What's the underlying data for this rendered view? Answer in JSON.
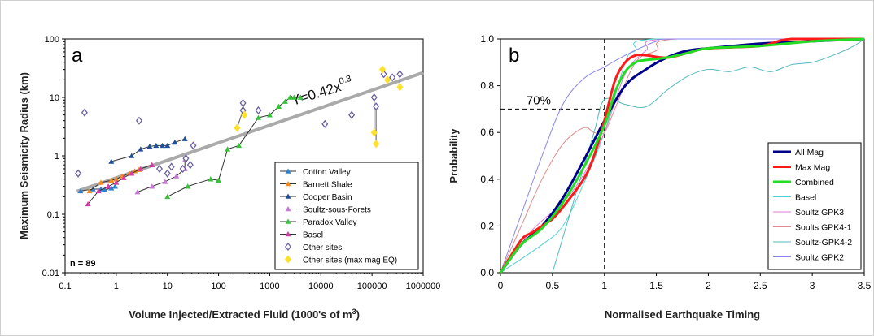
{
  "chart_data": [
    {
      "type": "scatter",
      "panel_label": "a",
      "xlabel": "Volume Injected/Extracted Fluid (1000's of m",
      "xlabel_sup": "3",
      "xlabel_tail": ")",
      "ylabel": "Maximum Seismicity Radius (km)",
      "x_scale": "log",
      "y_scale": "log",
      "xlim": [
        0.1,
        1000000
      ],
      "ylim": [
        0.01,
        100
      ],
      "x_ticks": [
        0.1,
        1,
        10,
        100,
        1000,
        10000,
        100000,
        1000000
      ],
      "x_tick_labels": [
        "0.1",
        "1",
        "10",
        "100",
        "1000",
        "10000",
        "100000",
        "1000000"
      ],
      "y_ticks": [
        0.01,
        0.1,
        1,
        10,
        100
      ],
      "y_tick_labels": [
        "0.01",
        "0.1",
        "1",
        "10",
        "100"
      ],
      "annotation_n": "n = 89",
      "fit": {
        "label": "Y=0.42x",
        "label_sup": "0.3",
        "a": 0.42,
        "b": 0.3,
        "x_range": [
          0.17,
          1000000
        ],
        "color": "#aaaaaa"
      },
      "legend_position": "bottom-right",
      "series": [
        {
          "name": "Cotton Valley",
          "color": "#2f7fd0",
          "marker": "triangle",
          "line": true,
          "points": [
            [
              0.2,
              0.25
            ],
            [
              0.35,
              0.27
            ],
            [
              0.5,
              0.27
            ],
            [
              0.6,
              0.26
            ],
            [
              0.8,
              0.28
            ],
            [
              0.95,
              0.3
            ]
          ]
        },
        {
          "name": "Barnett Shale",
          "color": "#f58a1f",
          "marker": "triangle",
          "line": true,
          "points": [
            [
              0.3,
              0.25
            ],
            [
              0.5,
              0.35
            ],
            [
              0.8,
              0.38
            ],
            [
              1,
              0.4
            ],
            [
              1.3,
              0.45
            ],
            [
              1.8,
              0.5
            ],
            [
              2.3,
              0.55
            ],
            [
              2.8,
              0.58
            ]
          ]
        },
        {
          "name": "Cooper Basin",
          "color": "#1f4f99",
          "marker": "triangle",
          "line": true,
          "points": [
            [
              0.8,
              0.8
            ],
            [
              2,
              1.0
            ],
            [
              3,
              1.3
            ],
            [
              4.5,
              1.45
            ],
            [
              6,
              1.5
            ],
            [
              8,
              1.5
            ],
            [
              10,
              1.5
            ],
            [
              14,
              1.7
            ],
            [
              22,
              1.95
            ]
          ]
        },
        {
          "name": "Soultz-sous-Forets",
          "color": "#c77ad6",
          "marker": "triangle",
          "line": true,
          "points": [
            [
              2.6,
              0.24
            ],
            [
              5,
              0.3
            ],
            [
              9,
              0.36
            ],
            [
              15,
              0.45
            ],
            [
              22,
              0.6
            ],
            [
              22,
              0.85
            ]
          ]
        },
        {
          "name": "Paradox Valley",
          "color": "#36c237",
          "marker": "triangle",
          "line": true,
          "points": [
            [
              10,
              0.2
            ],
            [
              25,
              0.3
            ],
            [
              70,
              0.4
            ],
            [
              100,
              0.38
            ],
            [
              150,
              1.3
            ],
            [
              250,
              1.5
            ],
            [
              600,
              4.5
            ],
            [
              1000,
              5.0
            ],
            [
              1500,
              7.0
            ],
            [
              2000,
              8.5
            ],
            [
              2500,
              10
            ],
            [
              3000,
              10
            ],
            [
              4000,
              10
            ]
          ]
        },
        {
          "name": "Basel",
          "color": "#d73ba8",
          "marker": "triangle",
          "line": true,
          "points": [
            [
              0.28,
              0.15
            ],
            [
              0.45,
              0.25
            ],
            [
              0.7,
              0.3
            ],
            [
              1.0,
              0.35
            ],
            [
              1.4,
              0.42
            ],
            [
              2,
              0.5
            ],
            [
              3,
              0.6
            ],
            [
              5,
              0.7
            ]
          ]
        },
        {
          "name": "Other sites",
          "color": "#6b5fa0",
          "marker": "diamond",
          "line": false,
          "points": [
            [
              0.18,
              0.5
            ],
            [
              0.24,
              5.5
            ],
            [
              2.8,
              4
            ],
            [
              7,
              0.6
            ],
            [
              10,
              0.5
            ],
            [
              12,
              0.65
            ],
            [
              20,
              0.6
            ],
            [
              23,
              0.9
            ],
            [
              28,
              0.7
            ],
            [
              32,
              1.5
            ],
            [
              300,
              6
            ],
            [
              300,
              8
            ],
            [
              600,
              6
            ],
            [
              12000,
              3.5
            ],
            [
              40000,
              5
            ],
            [
              110000,
              10
            ],
            [
              120000,
              7
            ],
            [
              170000,
              25
            ],
            [
              250000,
              22
            ],
            [
              350000,
              25
            ]
          ]
        },
        {
          "name": "Other sites (max mag EQ)",
          "color": "#ffe02a",
          "marker": "diamond",
          "line": false,
          "points": [
            [
              230,
              3
            ],
            [
              320,
              5
            ],
            [
              110000,
              2.5
            ],
            [
              120000,
              1.6
            ],
            [
              160000,
              30
            ],
            [
              200000,
              20
            ],
            [
              350000,
              15
            ]
          ]
        }
      ],
      "connectors": [
        {
          "color": "#555555",
          "points": [
            [
              230,
              3
            ],
            [
              300,
              6
            ]
          ]
        },
        {
          "color": "#555555",
          "points": [
            [
              320,
              5
            ],
            [
              300,
              8
            ]
          ]
        },
        {
          "color": "#555555",
          "points": [
            [
              110000,
              2.5
            ],
            [
              110000,
              10
            ]
          ]
        },
        {
          "color": "#555555",
          "points": [
            [
              120000,
              1.6
            ],
            [
              120000,
              7
            ]
          ]
        },
        {
          "color": "#555555",
          "points": [
            [
              160000,
              30
            ],
            [
              170000,
              25
            ]
          ]
        },
        {
          "color": "#555555",
          "points": [
            [
              200000,
              20
            ],
            [
              250000,
              22
            ]
          ]
        },
        {
          "color": "#555555",
          "points": [
            [
              350000,
              15
            ],
            [
              350000,
              25
            ]
          ]
        }
      ]
    },
    {
      "type": "line",
      "panel_label": "b",
      "xlabel": "Normalised Earthquake Timing",
      "ylabel": "Probability",
      "xlim": [
        0,
        3.5
      ],
      "ylim": [
        0,
        1
      ],
      "x_ticks": [
        0,
        0.5,
        1,
        1.5,
        2,
        2.5,
        3,
        3.5
      ],
      "x_tick_labels": [
        "0",
        "0.5",
        "1",
        "1.5",
        "2",
        "2.5",
        "3",
        "3.5"
      ],
      "y_ticks": [
        0,
        0.2,
        0.4,
        0.6,
        0.8,
        1.0
      ],
      "y_tick_labels": [
        "0.0",
        "0.2",
        "0.4",
        "0.6",
        "0.8",
        "1.0"
      ],
      "annotation": {
        "text": "70%",
        "x": 0.25,
        "y": 0.72
      },
      "reference_lines": {
        "x": 1.0,
        "y": 0.7
      },
      "legend_position": "bottom-right",
      "series": [
        {
          "name": "All Mag",
          "color": "#00008b",
          "width": 3,
          "points": [
            [
              0,
              0
            ],
            [
              0.2,
              0.12
            ],
            [
              0.4,
              0.2
            ],
            [
              0.6,
              0.32
            ],
            [
              0.8,
              0.48
            ],
            [
              1.0,
              0.65
            ],
            [
              1.2,
              0.8
            ],
            [
              1.4,
              0.87
            ],
            [
              1.6,
              0.92
            ],
            [
              1.8,
              0.95
            ],
            [
              2.0,
              0.96
            ],
            [
              2.5,
              0.98
            ],
            [
              3.0,
              0.99
            ],
            [
              3.5,
              1.0
            ]
          ]
        },
        {
          "name": "Max Mag",
          "color": "#ff1a1a",
          "width": 3,
          "points": [
            [
              0,
              0
            ],
            [
              0.2,
              0.14
            ],
            [
              0.3,
              0.17
            ],
            [
              0.4,
              0.2
            ],
            [
              0.5,
              0.23
            ],
            [
              0.6,
              0.28
            ],
            [
              0.8,
              0.4
            ],
            [
              0.9,
              0.5
            ],
            [
              1.0,
              0.65
            ],
            [
              1.1,
              0.82
            ],
            [
              1.2,
              0.9
            ],
            [
              1.3,
              0.93
            ],
            [
              1.4,
              0.93
            ],
            [
              1.6,
              0.92
            ],
            [
              1.8,
              0.94
            ],
            [
              2.0,
              0.96
            ],
            [
              2.5,
              0.97
            ],
            [
              2.8,
              1.0
            ],
            [
              3.5,
              1.0
            ]
          ]
        },
        {
          "name": "Combined",
          "color": "#22dd22",
          "width": 3,
          "points": [
            [
              0,
              0
            ],
            [
              0.2,
              0.12
            ],
            [
              0.4,
              0.19
            ],
            [
              0.6,
              0.3
            ],
            [
              0.8,
              0.45
            ],
            [
              1.0,
              0.63
            ],
            [
              1.1,
              0.77
            ],
            [
              1.2,
              0.86
            ],
            [
              1.3,
              0.9
            ],
            [
              1.4,
              0.91
            ],
            [
              1.6,
              0.92
            ],
            [
              1.8,
              0.94
            ],
            [
              2.0,
              0.96
            ],
            [
              2.5,
              0.97
            ],
            [
              3.0,
              0.99
            ],
            [
              3.5,
              1.0
            ]
          ]
        },
        {
          "name": "Basel",
          "color": "#52d2d6",
          "width": 1,
          "points": [
            [
              0,
              0
            ],
            [
              0.4,
              0.12
            ],
            [
              0.6,
              0.2
            ],
            [
              0.8,
              0.38
            ],
            [
              1.0,
              0.6
            ],
            [
              1.2,
              0.9
            ],
            [
              1.3,
              0.95
            ],
            [
              1.5,
              1.0
            ],
            [
              3.5,
              1.0
            ]
          ]
        },
        {
          "name": "Soultz GPK3",
          "color": "#e07bd0",
          "width": 1,
          "points": [
            [
              0,
              0
            ],
            [
              0.3,
              0.18
            ],
            [
              0.6,
              0.3
            ],
            [
              0.8,
              0.42
            ],
            [
              1.0,
              0.6
            ],
            [
              1.2,
              0.85
            ],
            [
              1.4,
              0.95
            ],
            [
              1.6,
              1.0
            ],
            [
              3.5,
              1.0
            ]
          ]
        },
        {
          "name": "Soults GPK4-1",
          "color": "#e08a8a",
          "width": 1,
          "points": [
            [
              0,
              0
            ],
            [
              0.2,
              0.2
            ],
            [
              0.4,
              0.4
            ],
            [
              0.6,
              0.55
            ],
            [
              0.8,
              0.62
            ],
            [
              0.9,
              0.6
            ],
            [
              1.0,
              0.6
            ],
            [
              1.1,
              0.7
            ],
            [
              1.3,
              0.9
            ],
            [
              1.5,
              0.95
            ],
            [
              1.7,
              1.0
            ],
            [
              3.5,
              1.0
            ]
          ]
        },
        {
          "name": "Soultz-GPK4-2",
          "color": "#52b8bd",
          "width": 1,
          "points": [
            [
              0.5,
              0.0
            ],
            [
              0.7,
              0.3
            ],
            [
              0.9,
              0.6
            ],
            [
              1.0,
              0.74
            ],
            [
              1.2,
              0.72
            ],
            [
              1.4,
              0.71
            ],
            [
              1.6,
              0.78
            ],
            [
              1.8,
              0.84
            ],
            [
              2.0,
              0.87
            ],
            [
              2.2,
              0.86
            ],
            [
              2.4,
              0.88
            ],
            [
              2.6,
              0.86
            ],
            [
              2.8,
              0.89
            ],
            [
              3.0,
              0.9
            ],
            [
              3.2,
              0.93
            ],
            [
              3.4,
              0.97
            ],
            [
              3.5,
              1.0
            ]
          ]
        },
        {
          "name": "Soultz GPK2",
          "color": "#8a86e8",
          "width": 1,
          "points": [
            [
              0,
              0
            ],
            [
              0.2,
              0.25
            ],
            [
              0.4,
              0.5
            ],
            [
              0.6,
              0.72
            ],
            [
              0.8,
              0.83
            ],
            [
              1.0,
              0.88
            ],
            [
              1.2,
              0.93
            ],
            [
              1.5,
              0.99
            ],
            [
              1.7,
              1.0
            ],
            [
              3.5,
              1.0
            ]
          ]
        }
      ]
    }
  ]
}
